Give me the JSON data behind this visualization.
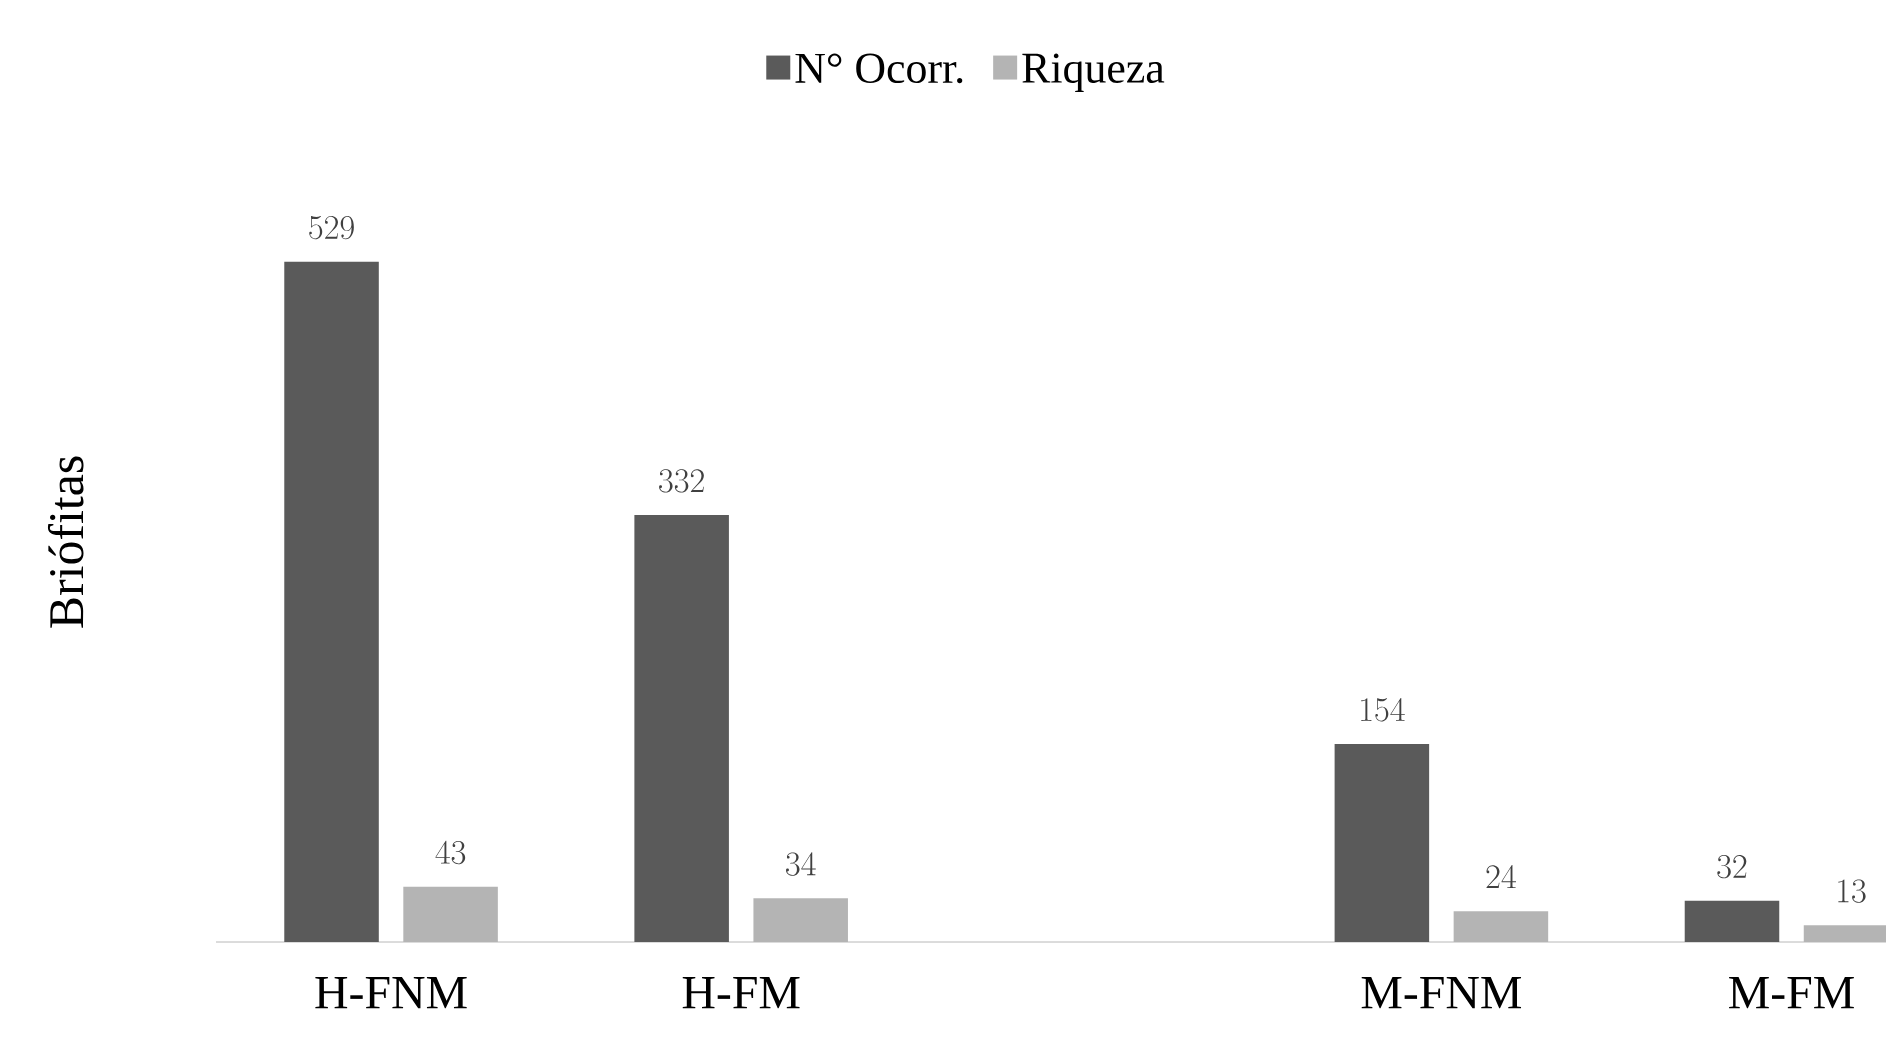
{
  "chart_data": {
    "type": "bar",
    "ylabel": "Briófitas",
    "categories": [
      "H-FNM",
      "H-FM",
      null,
      "M-FNM",
      "M-FM"
    ],
    "series": [
      {
        "name": "N° Ocorr.",
        "color": "#5a5a5a",
        "values": [
          529,
          332,
          null,
          154,
          32
        ]
      },
      {
        "name": "Riqueza",
        "color": "#b4b4b4",
        "values": [
          43,
          34,
          null,
          24,
          13
        ]
      }
    ],
    "data_labels": true,
    "legend": "top"
  }
}
